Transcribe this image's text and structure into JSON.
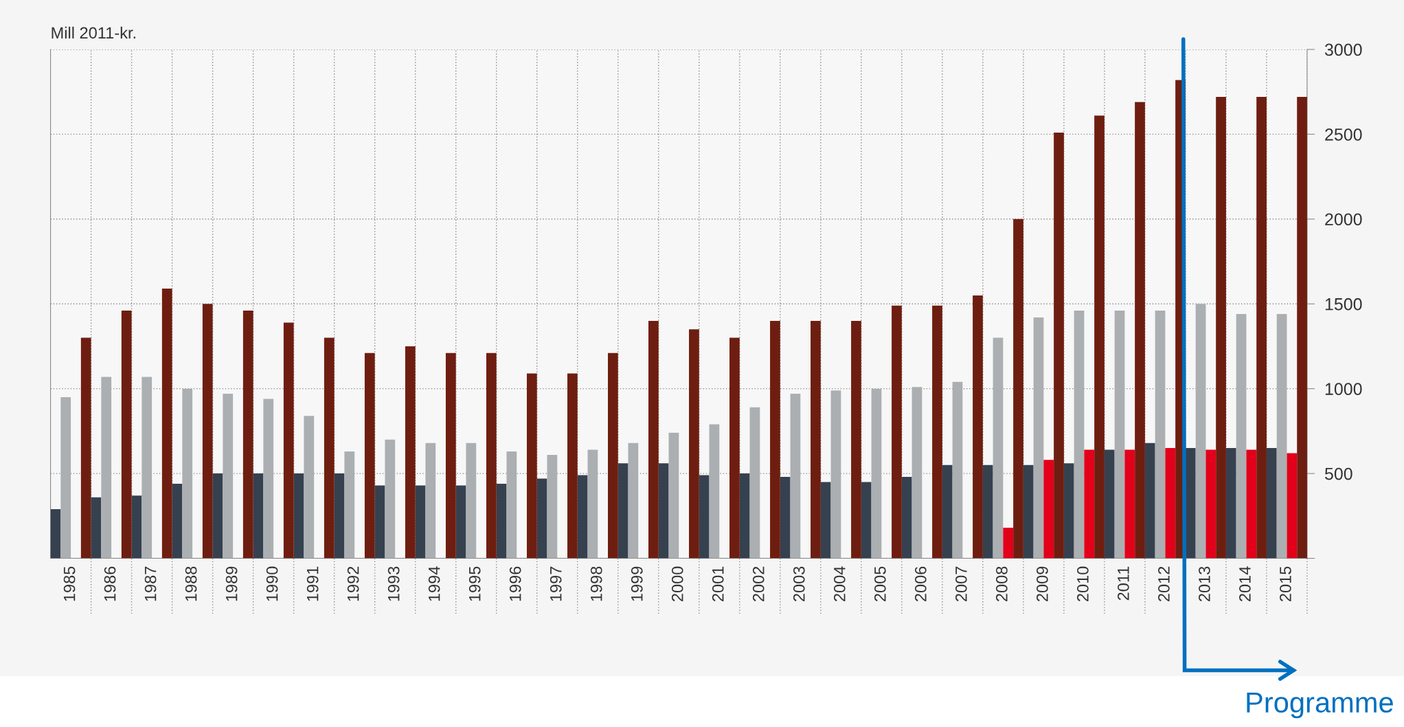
{
  "chart_data": {
    "type": "bar",
    "ylabel": "Mill 2011-kr.",
    "categories": [
      "1985",
      "1986",
      "1987",
      "1988",
      "1989",
      "1990",
      "1991",
      "1992",
      "1993",
      "1994",
      "1995",
      "1996",
      "1997",
      "1998",
      "1999",
      "2000",
      "2001",
      "2002",
      "2003",
      "2004",
      "2005",
      "2006",
      "2007",
      "2008",
      "2009",
      "2010",
      "2011",
      "2012",
      "2013",
      "2014",
      "2015"
    ],
    "series": [
      {
        "color": "#36414f",
        "values": [
          290,
          360,
          370,
          440,
          500,
          500,
          500,
          500,
          430,
          430,
          430,
          440,
          470,
          490,
          560,
          560,
          490,
          500,
          480,
          450,
          450,
          480,
          550,
          550,
          550,
          560,
          640,
          680,
          650,
          650,
          650
        ]
      },
      {
        "color": "#abafb2",
        "values": [
          950,
          1070,
          1070,
          1000,
          970,
          940,
          840,
          630,
          700,
          680,
          680,
          630,
          610,
          640,
          680,
          740,
          790,
          890,
          970,
          990,
          1000,
          1010,
          1040,
          1300,
          1420,
          1460,
          1460,
          1460,
          1500,
          1440,
          1440
        ]
      },
      {
        "color": "#e2001a",
        "values": [
          null,
          null,
          null,
          null,
          null,
          null,
          null,
          null,
          null,
          null,
          null,
          null,
          null,
          null,
          null,
          null,
          null,
          null,
          null,
          null,
          null,
          null,
          null,
          180,
          580,
          640,
          640,
          650,
          640,
          640,
          620
        ]
      },
      {
        "color": "#6e1e10",
        "values": [
          1300,
          1460,
          1590,
          1500,
          1460,
          1390,
          1300,
          1210,
          1250,
          1210,
          1210,
          1090,
          1090,
          1210,
          1400,
          1350,
          1300,
          1400,
          1400,
          1400,
          1490,
          1490,
          1550,
          2000,
          2510,
          2610,
          2690,
          2820,
          2720,
          2720,
          2720
        ]
      }
    ],
    "ylim": [
      0,
      3000
    ],
    "yticks": [
      {
        "value": 0,
        "label": null
      },
      500,
      1000,
      1500,
      2000,
      2500,
      3000
    ],
    "grid": true,
    "annotations": [
      "Programme"
    ]
  }
}
